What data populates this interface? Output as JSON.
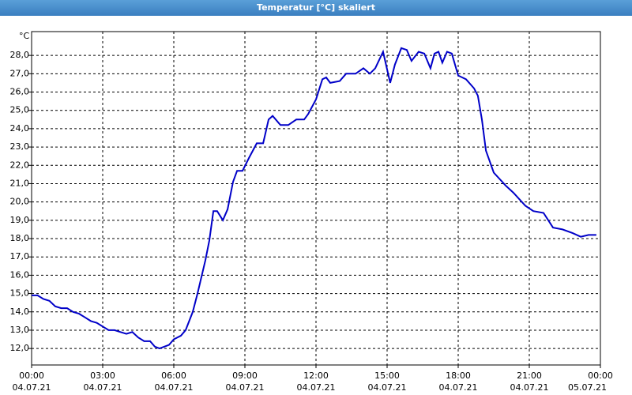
{
  "chart_data": {
    "type": "line",
    "title": "Temperatur [°C] skaliert",
    "y_unit": "°C",
    "x": [
      0,
      0.25,
      0.5,
      0.75,
      1,
      1.25,
      1.5,
      1.75,
      2,
      2.25,
      2.5,
      2.75,
      3,
      3.25,
      3.5,
      3.75,
      4,
      4.25,
      4.5,
      4.75,
      5,
      5.2,
      5.4,
      5.6,
      5.8,
      6,
      6.3,
      6.5,
      6.8,
      7,
      7.33,
      7.5,
      7.67,
      7.83,
      8.07,
      8.27,
      8.5,
      8.67,
      8.9,
      9.17,
      9.5,
      9.77,
      10,
      10.17,
      10.5,
      10.83,
      11.17,
      11.5,
      11.67,
      12,
      12.27,
      12.43,
      12.6,
      13,
      13.27,
      13.67,
      14,
      14.27,
      14.5,
      14.83,
      15.13,
      15.33,
      15.6,
      15.83,
      16.03,
      16.33,
      16.57,
      16.83,
      17,
      17.17,
      17.33,
      17.53,
      17.73,
      18,
      18.33,
      18.67,
      18.83,
      19,
      19.17,
      19.5,
      20,
      20.33,
      20.83,
      21.17,
      21.6,
      22,
      22.4,
      22.83,
      23.17,
      23.5,
      23.83
    ],
    "series": [
      {
        "name": "Temperatur",
        "color": "#0000c8",
        "values": [
          14.9,
          14.9,
          14.7,
          14.6,
          14.3,
          14.2,
          14.2,
          14.0,
          13.9,
          13.7,
          13.5,
          13.4,
          13.2,
          13.0,
          13.0,
          12.9,
          12.8,
          12.9,
          12.6,
          12.4,
          12.4,
          12.1,
          12.0,
          12.1,
          12.2,
          12.5,
          12.7,
          13.0,
          14.0,
          15.0,
          16.8,
          17.9,
          19.5,
          19.5,
          19.0,
          19.6,
          21.1,
          21.7,
          21.7,
          22.4,
          23.2,
          23.2,
          24.5,
          24.7,
          24.2,
          24.2,
          24.5,
          24.5,
          24.8,
          25.6,
          26.7,
          26.8,
          26.5,
          26.6,
          27.0,
          27.0,
          27.3,
          27.0,
          27.3,
          28.2,
          26.5,
          27.5,
          28.4,
          28.3,
          27.7,
          28.2,
          28.1,
          27.3,
          28.1,
          28.2,
          27.6,
          28.2,
          28.1,
          26.9,
          26.7,
          26.2,
          25.8,
          24.5,
          22.8,
          21.6,
          20.9,
          20.5,
          19.8,
          19.5,
          19.4,
          18.6,
          18.5,
          18.3,
          18.1,
          18.2,
          18.2
        ]
      }
    ],
    "xlim": [
      0,
      24
    ],
    "xticks": [
      {
        "value": 0,
        "label": "00:00",
        "date": "04.07.21"
      },
      {
        "value": 3,
        "label": "03:00",
        "date": "04.07.21"
      },
      {
        "value": 6,
        "label": "06:00",
        "date": "04.07.21"
      },
      {
        "value": 9,
        "label": "09:00",
        "date": "04.07.21"
      },
      {
        "value": 12,
        "label": "12:00",
        "date": "04.07.21"
      },
      {
        "value": 15,
        "label": "15:00",
        "date": "04.07.21"
      },
      {
        "value": 18,
        "label": "18:00",
        "date": "04.07.21"
      },
      {
        "value": 21,
        "label": "21:00",
        "date": "04.07.21"
      },
      {
        "value": 24,
        "label": "00:00",
        "date": "05.07.21"
      }
    ],
    "ylim": [
      11.1,
      29.3
    ],
    "yticks": [
      {
        "value": 12,
        "label": "12,0"
      },
      {
        "value": 13,
        "label": "13,0"
      },
      {
        "value": 14,
        "label": "14,0"
      },
      {
        "value": 15,
        "label": "15,0"
      },
      {
        "value": 16,
        "label": "16,0"
      },
      {
        "value": 17,
        "label": "17,0"
      },
      {
        "value": 18,
        "label": "18,0"
      },
      {
        "value": 19,
        "label": "19,0"
      },
      {
        "value": 20,
        "label": "20,0"
      },
      {
        "value": 21,
        "label": "21,0"
      },
      {
        "value": 22,
        "label": "22,0"
      },
      {
        "value": 23,
        "label": "23,0"
      },
      {
        "value": 24,
        "label": "24,0"
      },
      {
        "value": 25,
        "label": "25,0"
      },
      {
        "value": 26,
        "label": "26,0"
      },
      {
        "value": 27,
        "label": "27,0"
      },
      {
        "value": 28,
        "label": "28,0"
      }
    ],
    "grid": true
  }
}
